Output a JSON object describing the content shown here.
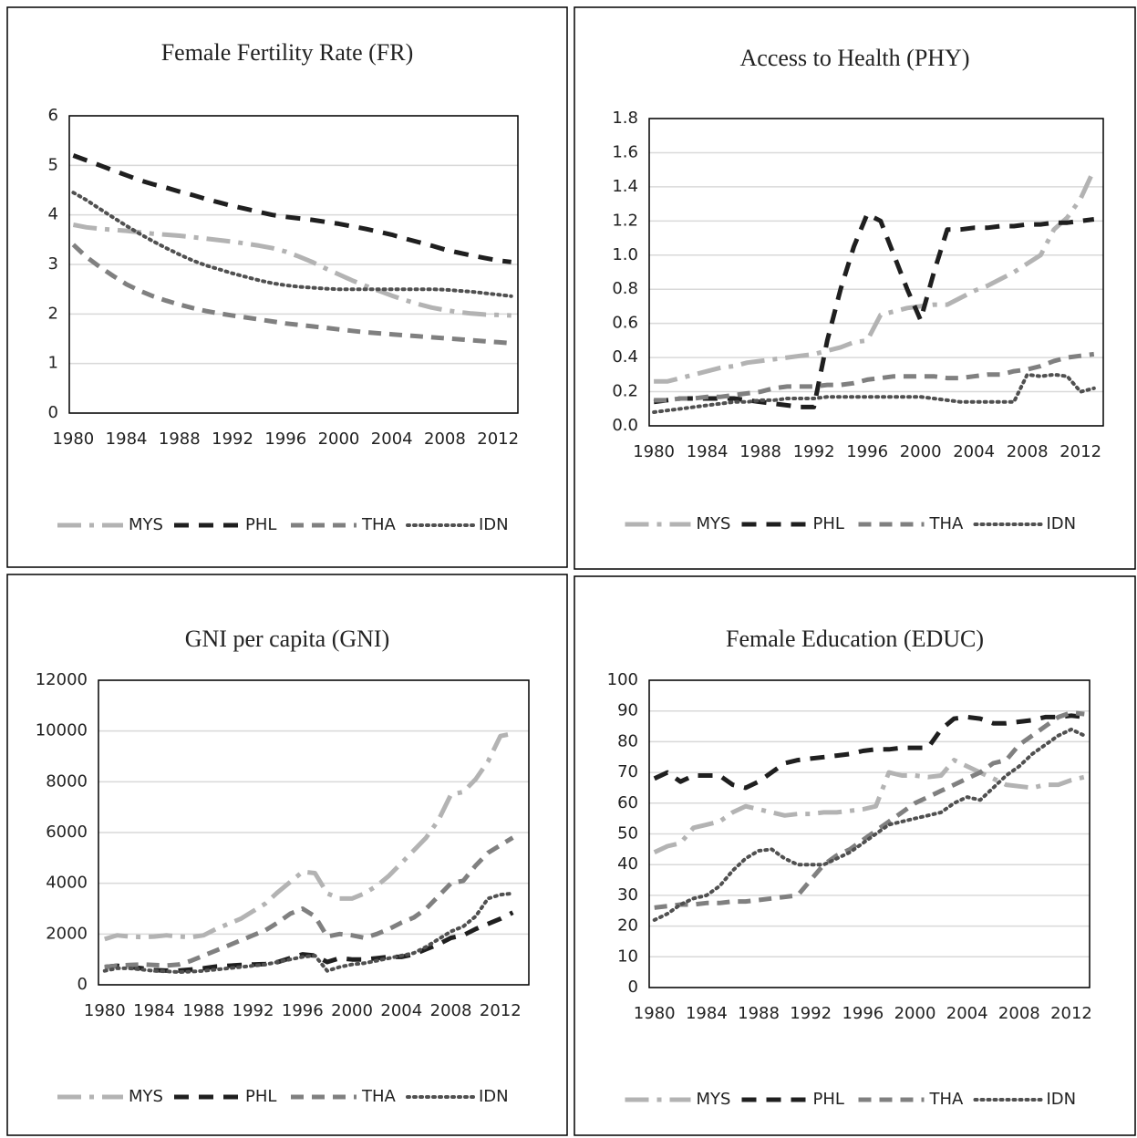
{
  "chart_data": [
    {
      "type": "line",
      "title": "Female Fertility Rate (FR)",
      "x": [
        1980,
        1981,
        1982,
        1983,
        1984,
        1985,
        1986,
        1987,
        1988,
        1989,
        1990,
        1991,
        1992,
        1993,
        1994,
        1995,
        1996,
        1997,
        1998,
        1999,
        2000,
        2001,
        2002,
        2003,
        2004,
        2005,
        2006,
        2007,
        2008,
        2009,
        2010,
        2011,
        2012,
        2013
      ],
      "xlim": [
        1979.7,
        2013.5
      ],
      "xticks": [
        1980,
        1984,
        1988,
        1992,
        1996,
        2000,
        2004,
        2008,
        2012
      ],
      "ylim": [
        0,
        6
      ],
      "yticks": [
        0,
        1,
        2,
        3,
        4,
        5,
        6
      ],
      "grid": true,
      "series": [
        {
          "name": "MYS",
          "color": "#b3b3b3",
          "values": [
            3.8,
            3.75,
            3.72,
            3.7,
            3.68,
            3.65,
            3.62,
            3.6,
            3.58,
            3.55,
            3.52,
            3.49,
            3.46,
            3.42,
            3.38,
            3.33,
            3.26,
            3.16,
            3.05,
            2.92,
            2.8,
            2.68,
            2.57,
            2.47,
            2.37,
            2.28,
            2.2,
            2.13,
            2.08,
            2.04,
            2.01,
            1.99,
            1.98,
            1.97
          ]
        },
        {
          "name": "PHL",
          "color": "#1f1f1f",
          "values": [
            5.2,
            5.1,
            5.0,
            4.9,
            4.8,
            4.7,
            4.62,
            4.55,
            4.47,
            4.4,
            4.32,
            4.25,
            4.18,
            4.12,
            4.06,
            4.0,
            3.96,
            3.93,
            3.9,
            3.86,
            3.82,
            3.77,
            3.72,
            3.66,
            3.6,
            3.52,
            3.45,
            3.38,
            3.3,
            3.24,
            3.18,
            3.13,
            3.08,
            3.05
          ]
        },
        {
          "name": "THA",
          "color": "#808080",
          "values": [
            3.4,
            3.15,
            2.95,
            2.77,
            2.6,
            2.47,
            2.36,
            2.27,
            2.19,
            2.12,
            2.06,
            2.01,
            1.97,
            1.93,
            1.89,
            1.85,
            1.81,
            1.78,
            1.75,
            1.72,
            1.69,
            1.66,
            1.63,
            1.61,
            1.59,
            1.57,
            1.55,
            1.53,
            1.51,
            1.49,
            1.47,
            1.45,
            1.43,
            1.41
          ]
        },
        {
          "name": "IDN",
          "color": "#505050",
          "values": [
            4.45,
            4.3,
            4.12,
            3.95,
            3.78,
            3.62,
            3.47,
            3.33,
            3.2,
            3.08,
            2.98,
            2.9,
            2.82,
            2.75,
            2.68,
            2.62,
            2.58,
            2.55,
            2.53,
            2.51,
            2.5,
            2.5,
            2.5,
            2.5,
            2.5,
            2.5,
            2.5,
            2.5,
            2.49,
            2.47,
            2.45,
            2.42,
            2.39,
            2.36
          ]
        }
      ]
    },
    {
      "type": "line",
      "title": "Access to Health (PHY)",
      "x": [
        1980,
        1981,
        1982,
        1983,
        1984,
        1985,
        1986,
        1987,
        1988,
        1989,
        1990,
        1991,
        1992,
        1993,
        1994,
        1995,
        1996,
        1997,
        1998,
        1999,
        2000,
        2001,
        2002,
        2003,
        2004,
        2005,
        2006,
        2007,
        2008,
        2009,
        2010,
        2011,
        2012,
        2013
      ],
      "xlim": [
        1979.65,
        2013.7
      ],
      "xticks": [
        1980,
        1984,
        1988,
        1992,
        1996,
        2000,
        2004,
        2008,
        2012
      ],
      "ylim": [
        0,
        1.8
      ],
      "yticks": [
        {
          "value": 0,
          "label": "0.0"
        },
        0.2,
        0.4,
        0.6,
        0.8,
        {
          "value": 1,
          "label": "1.0"
        },
        1.2,
        1.4,
        1.6,
        1.8
      ],
      "grid": true,
      "series": [
        {
          "name": "MYS",
          "color": "#b3b3b3",
          "values": [
            0.26,
            0.26,
            0.28,
            0.3,
            0.32,
            0.34,
            0.35,
            0.37,
            0.38,
            0.39,
            0.4,
            0.41,
            0.42,
            0.44,
            0.46,
            0.49,
            0.5,
            0.65,
            0.67,
            0.69,
            0.7,
            0.71,
            0.71,
            0.75,
            0.79,
            0.82,
            0.86,
            0.9,
            0.95,
            1.0,
            1.15,
            1.22,
            1.33,
            1.5
          ]
        },
        {
          "name": "PHL",
          "color": "#1f1f1f",
          "values": [
            0.14,
            0.15,
            0.16,
            0.16,
            0.16,
            0.16,
            0.16,
            0.15,
            0.14,
            0.13,
            0.12,
            0.11,
            0.11,
            0.5,
            0.8,
            1.05,
            1.24,
            1.2,
            1.0,
            0.8,
            0.62,
            0.9,
            1.15,
            1.15,
            1.16,
            1.16,
            1.17,
            1.17,
            1.18,
            1.18,
            1.19,
            1.19,
            1.2,
            1.21
          ]
        },
        {
          "name": "THA",
          "color": "#808080",
          "values": [
            0.15,
            0.15,
            0.16,
            0.16,
            0.17,
            0.17,
            0.18,
            0.19,
            0.2,
            0.22,
            0.23,
            0.23,
            0.23,
            0.24,
            0.24,
            0.25,
            0.27,
            0.28,
            0.29,
            0.29,
            0.29,
            0.29,
            0.28,
            0.28,
            0.29,
            0.3,
            0.3,
            0.32,
            0.33,
            0.35,
            0.38,
            0.4,
            0.41,
            0.42
          ]
        },
        {
          "name": "IDN",
          "color": "#505050",
          "values": [
            0.08,
            0.09,
            0.1,
            0.11,
            0.12,
            0.13,
            0.14,
            0.14,
            0.15,
            0.15,
            0.16,
            0.16,
            0.16,
            0.17,
            0.17,
            0.17,
            0.17,
            0.17,
            0.17,
            0.17,
            0.17,
            0.16,
            0.15,
            0.14,
            0.14,
            0.14,
            0.14,
            0.14,
            0.3,
            0.29,
            0.3,
            0.29,
            0.2,
            0.22
          ]
        }
      ]
    },
    {
      "type": "line",
      "title": "GNI per capita (GNI)",
      "x": [
        1980,
        1981,
        1982,
        1983,
        1984,
        1985,
        1986,
        1987,
        1988,
        1989,
        1990,
        1991,
        1992,
        1993,
        1994,
        1995,
        1996,
        1997,
        1998,
        1999,
        2000,
        2001,
        2002,
        2003,
        2004,
        2005,
        2006,
        2007,
        2008,
        2009,
        2010,
        2011,
        2012,
        2013
      ],
      "xlim": [
        1979.5,
        2014.3
      ],
      "xticks": [
        1980,
        1984,
        1988,
        1992,
        1996,
        2000,
        2004,
        2008,
        2012
      ],
      "ylim": [
        0,
        12000
      ],
      "yticks": [
        0,
        2000,
        4000,
        6000,
        8000,
        10000,
        12000
      ],
      "grid": true,
      "series": [
        {
          "name": "MYS",
          "color": "#b3b3b3",
          "values": [
            1800,
            1950,
            1900,
            1880,
            1900,
            1950,
            1900,
            1880,
            1950,
            2200,
            2400,
            2600,
            2900,
            3200,
            3650,
            4050,
            4450,
            4400,
            3600,
            3400,
            3400,
            3600,
            3900,
            4300,
            4800,
            5300,
            5800,
            6500,
            7500,
            7600,
            8100,
            8800,
            9800,
            9900
          ]
        },
        {
          "name": "PHL",
          "color": "#1f1f1f",
          "values": [
            700,
            750,
            700,
            650,
            580,
            560,
            560,
            600,
            650,
            720,
            750,
            780,
            800,
            820,
            900,
            1050,
            1200,
            1150,
            900,
            1050,
            1000,
            1000,
            1050,
            1100,
            1100,
            1200,
            1400,
            1600,
            1850,
            1950,
            2200,
            2400,
            2600,
            2850
          ]
        },
        {
          "name": "THA",
          "color": "#808080",
          "values": [
            700,
            750,
            780,
            800,
            780,
            760,
            800,
            950,
            1150,
            1350,
            1550,
            1750,
            1950,
            2150,
            2450,
            2800,
            3000,
            2700,
            1900,
            2000,
            1950,
            1850,
            2000,
            2200,
            2450,
            2650,
            3000,
            3500,
            4000,
            4100,
            4700,
            5200,
            5500,
            5800
          ]
        },
        {
          "name": "IDN",
          "color": "#505050",
          "values": [
            550,
            650,
            650,
            600,
            550,
            530,
            500,
            520,
            550,
            600,
            650,
            700,
            750,
            800,
            900,
            1000,
            1100,
            1150,
            550,
            700,
            800,
            850,
            950,
            1050,
            1150,
            1250,
            1500,
            1800,
            2100,
            2300,
            2700,
            3400,
            3550,
            3600
          ]
        }
      ]
    },
    {
      "type": "line",
      "title": "Female Education (EDUC)",
      "x": [
        1980,
        1981,
        1982,
        1983,
        1984,
        1985,
        1986,
        1987,
        1988,
        1989,
        1990,
        1991,
        1992,
        1993,
        1994,
        1995,
        1996,
        1997,
        1998,
        1999,
        2000,
        2001,
        2002,
        2003,
        2004,
        2005,
        2006,
        2007,
        2008,
        2009,
        2010,
        2011,
        2012,
        2013
      ],
      "xlim": [
        1979.6,
        2013.4
      ],
      "xticks": [
        1980,
        1984,
        1988,
        1992,
        1996,
        2000,
        2004,
        2008,
        2012
      ],
      "ylim": [
        0,
        100
      ],
      "yticks": [
        0,
        10,
        20,
        30,
        40,
        50,
        60,
        70,
        80,
        90,
        100
      ],
      "grid": true,
      "series": [
        {
          "name": "MYS",
          "color": "#b3b3b3",
          "values": [
            44,
            46,
            47,
            52,
            53,
            54,
            57,
            59,
            58,
            57,
            56,
            56.5,
            56.5,
            57,
            57,
            57.5,
            58,
            59,
            70,
            69,
            69,
            68.5,
            69,
            74,
            72,
            70,
            68,
            66,
            65.5,
            65,
            66,
            66,
            67.5,
            68.5
          ]
        },
        {
          "name": "PHL",
          "color": "#1f1f1f",
          "values": [
            68,
            70,
            67,
            69,
            69,
            69,
            66,
            65,
            67,
            70,
            73,
            74,
            74.5,
            75,
            75.5,
            76,
            77,
            77.5,
            77.5,
            78,
            78,
            78,
            84,
            87.5,
            88,
            87.5,
            86,
            86,
            86.5,
            87,
            88,
            88,
            88.5,
            88
          ]
        },
        {
          "name": "THA",
          "color": "#808080",
          "values": [
            26,
            26.5,
            27,
            27,
            27.5,
            27.5,
            28,
            28,
            28.5,
            29,
            29.5,
            30,
            35,
            40,
            43,
            45,
            48,
            51,
            54,
            57,
            60,
            62,
            64,
            66,
            68,
            70,
            73,
            74,
            79,
            82,
            85,
            88,
            89.5,
            89
          ]
        },
        {
          "name": "IDN",
          "color": "#505050",
          "values": [
            22,
            24,
            27,
            29,
            30,
            33,
            38,
            42,
            44.5,
            45,
            42,
            40,
            40,
            40,
            42,
            44,
            47,
            50,
            53,
            54,
            55,
            56,
            57,
            60,
            62,
            61,
            65,
            69,
            72,
            76,
            79,
            82,
            84,
            82
          ]
        }
      ]
    }
  ]
}
